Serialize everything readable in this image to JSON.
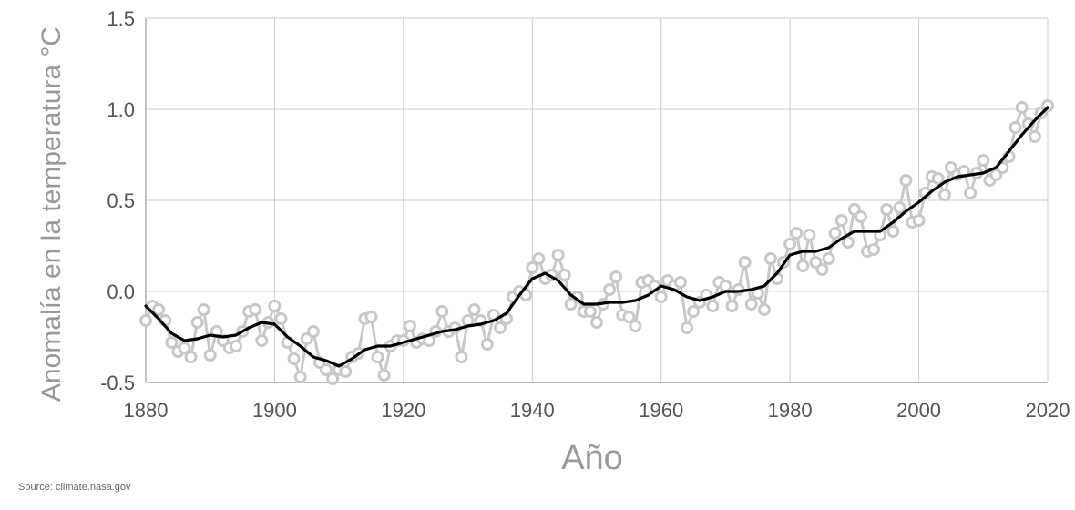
{
  "source": "Source: climate.nasa.gov",
  "chart_data": {
    "type": "line",
    "title": "",
    "xlabel": "Año",
    "ylabel": "Anomalía en la temperatura °C",
    "xlim": [
      1880,
      2020
    ],
    "ylim": [
      -0.5,
      1.5
    ],
    "x_ticks": [
      1880,
      1900,
      1920,
      1940,
      1960,
      1980,
      2000,
      2020
    ],
    "x_tick_labels": [
      "1880",
      "1900",
      "1920",
      "1940",
      "1960",
      "1980",
      "2000",
      "2020"
    ],
    "y_ticks": [
      -0.5,
      0.0,
      0.5,
      1.0,
      1.5
    ],
    "y_tick_labels": [
      "-0.5",
      "0.0",
      "0.5",
      "1.0",
      "1.5"
    ],
    "grid": true,
    "colors": {
      "annual": "#c8c8c8",
      "smoothed": "#000000",
      "grid": "#cccccc",
      "axis": "#999999"
    },
    "series": [
      {
        "style": "line-with-markers",
        "x": [
          1880,
          1881,
          1882,
          1883,
          1884,
          1885,
          1886,
          1887,
          1888,
          1889,
          1890,
          1891,
          1892,
          1893,
          1894,
          1895,
          1896,
          1897,
          1898,
          1899,
          1900,
          1901,
          1902,
          1903,
          1904,
          1905,
          1906,
          1907,
          1908,
          1909,
          1910,
          1911,
          1912,
          1913,
          1914,
          1915,
          1916,
          1917,
          1918,
          1919,
          1920,
          1921,
          1922,
          1923,
          1924,
          1925,
          1926,
          1927,
          1928,
          1929,
          1930,
          1931,
          1932,
          1933,
          1934,
          1935,
          1936,
          1937,
          1938,
          1939,
          1940,
          1941,
          1942,
          1943,
          1944,
          1945,
          1946,
          1947,
          1948,
          1949,
          1950,
          1951,
          1952,
          1953,
          1954,
          1955,
          1956,
          1957,
          1958,
          1959,
          1960,
          1961,
          1962,
          1963,
          1964,
          1965,
          1966,
          1967,
          1968,
          1969,
          1970,
          1971,
          1972,
          1973,
          1974,
          1975,
          1976,
          1977,
          1978,
          1979,
          1980,
          1981,
          1982,
          1983,
          1984,
          1985,
          1986,
          1987,
          1988,
          1989,
          1990,
          1991,
          1992,
          1993,
          1994,
          1995,
          1996,
          1997,
          1998,
          1999,
          2000,
          2001,
          2002,
          2003,
          2004,
          2005,
          2006,
          2007,
          2008,
          2009,
          2010,
          2011,
          2012,
          2013,
          2014,
          2015,
          2016,
          2017,
          2018,
          2019,
          2020
        ],
        "values": [
          -0.16,
          -0.08,
          -0.1,
          -0.16,
          -0.28,
          -0.33,
          -0.31,
          -0.36,
          -0.17,
          -0.1,
          -0.35,
          -0.22,
          -0.27,
          -0.31,
          -0.3,
          -0.22,
          -0.11,
          -0.1,
          -0.27,
          -0.17,
          -0.08,
          -0.15,
          -0.28,
          -0.37,
          -0.47,
          -0.26,
          -0.22,
          -0.39,
          -0.43,
          -0.48,
          -0.43,
          -0.44,
          -0.36,
          -0.34,
          -0.15,
          -0.14,
          -0.36,
          -0.46,
          -0.3,
          -0.27,
          -0.27,
          -0.19,
          -0.28,
          -0.26,
          -0.27,
          -0.22,
          -0.11,
          -0.22,
          -0.2,
          -0.36,
          -0.16,
          -0.1,
          -0.16,
          -0.29,
          -0.13,
          -0.2,
          -0.15,
          -0.03,
          0.0,
          -0.02,
          0.13,
          0.18,
          0.07,
          0.09,
          0.2,
          0.09,
          -0.07,
          -0.03,
          -0.11,
          -0.11,
          -0.17,
          -0.07,
          0.01,
          0.08,
          -0.13,
          -0.14,
          -0.19,
          0.05,
          0.06,
          0.03,
          -0.03,
          0.06,
          0.03,
          0.05,
          -0.2,
          -0.11,
          -0.06,
          -0.02,
          -0.08,
          0.05,
          0.03,
          -0.08,
          0.01,
          0.16,
          -0.07,
          -0.01,
          -0.1,
          0.18,
          0.07,
          0.16,
          0.26,
          0.32,
          0.14,
          0.31,
          0.16,
          0.12,
          0.18,
          0.32,
          0.39,
          0.27,
          0.45,
          0.41,
          0.22,
          0.23,
          0.31,
          0.45,
          0.33,
          0.46,
          0.61,
          0.38,
          0.39,
          0.54,
          0.63,
          0.62,
          0.53,
          0.68,
          0.64,
          0.66,
          0.54,
          0.65,
          0.72,
          0.61,
          0.64,
          0.68,
          0.74,
          0.9,
          1.01,
          0.92,
          0.85,
          0.98,
          1.02
        ]
      },
      {
        "style": "line",
        "x": [
          1880,
          1882,
          1884,
          1886,
          1888,
          1890,
          1892,
          1894,
          1896,
          1898,
          1900,
          1902,
          1904,
          1906,
          1908,
          1910,
          1912,
          1914,
          1916,
          1918,
          1920,
          1922,
          1924,
          1926,
          1928,
          1930,
          1932,
          1934,
          1936,
          1938,
          1940,
          1942,
          1944,
          1946,
          1948,
          1950,
          1952,
          1954,
          1956,
          1958,
          1960,
          1962,
          1964,
          1966,
          1968,
          1970,
          1972,
          1974,
          1976,
          1978,
          1980,
          1982,
          1984,
          1986,
          1988,
          1990,
          1992,
          1994,
          1996,
          1998,
          2000,
          2002,
          2004,
          2006,
          2008,
          2010,
          2012,
          2014,
          2016,
          2018,
          2020
        ],
        "values": [
          -0.08,
          -0.15,
          -0.23,
          -0.27,
          -0.26,
          -0.24,
          -0.25,
          -0.24,
          -0.2,
          -0.17,
          -0.18,
          -0.25,
          -0.3,
          -0.36,
          -0.38,
          -0.41,
          -0.37,
          -0.32,
          -0.3,
          -0.3,
          -0.28,
          -0.26,
          -0.24,
          -0.22,
          -0.21,
          -0.19,
          -0.18,
          -0.16,
          -0.12,
          -0.02,
          0.07,
          0.1,
          0.06,
          -0.02,
          -0.07,
          -0.07,
          -0.06,
          -0.06,
          -0.05,
          -0.02,
          0.03,
          0.01,
          -0.03,
          -0.05,
          -0.03,
          0.0,
          0.0,
          0.01,
          0.03,
          0.1,
          0.2,
          0.22,
          0.22,
          0.24,
          0.29,
          0.33,
          0.33,
          0.33,
          0.38,
          0.44,
          0.49,
          0.55,
          0.6,
          0.63,
          0.64,
          0.65,
          0.68,
          0.77,
          0.86,
          0.94,
          1.01
        ]
      }
    ]
  }
}
